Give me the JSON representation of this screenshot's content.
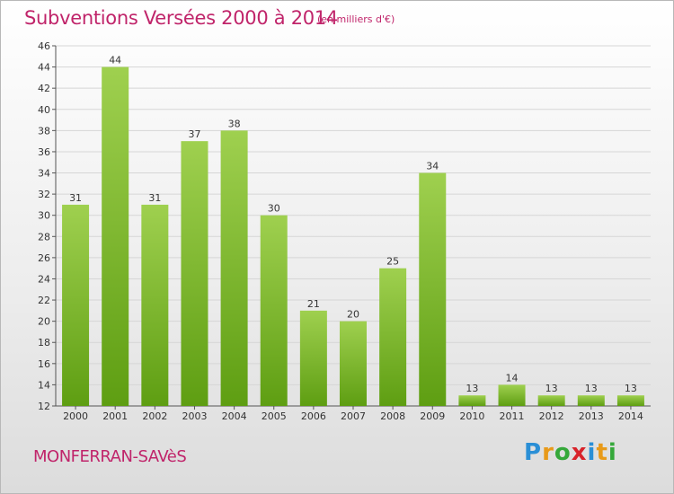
{
  "header": {
    "title": "Subventions Versées 2000 à 2014",
    "unit": "(en milliers d'€)"
  },
  "footer": {
    "commune": "MONFERRAN-SAVèS",
    "logo": "Proxiti"
  },
  "colors": {
    "title": "#c0246a",
    "bar_light": "#9fd04f",
    "bar_dark": "#5e9e12",
    "gridline": "#d6d6d6"
  },
  "chart_data": {
    "type": "bar",
    "title": "Subventions Versées 2000 à 2014",
    "subtitle": "(en milliers d'€)",
    "xlabel": "",
    "ylabel": "",
    "categories": [
      "2000",
      "2001",
      "2002",
      "2003",
      "2004",
      "2005",
      "2006",
      "2007",
      "2008",
      "2009",
      "2010",
      "2011",
      "2012",
      "2013",
      "2014"
    ],
    "values": [
      31,
      44,
      31,
      37,
      38,
      30,
      21,
      20,
      25,
      34,
      13,
      14,
      13,
      13,
      13
    ],
    "ylim": [
      12,
      46
    ],
    "yticks": [
      12,
      14,
      16,
      18,
      20,
      22,
      24,
      26,
      28,
      30,
      32,
      34,
      36,
      38,
      40,
      42,
      44,
      46
    ],
    "grid": true,
    "legend": "none"
  }
}
